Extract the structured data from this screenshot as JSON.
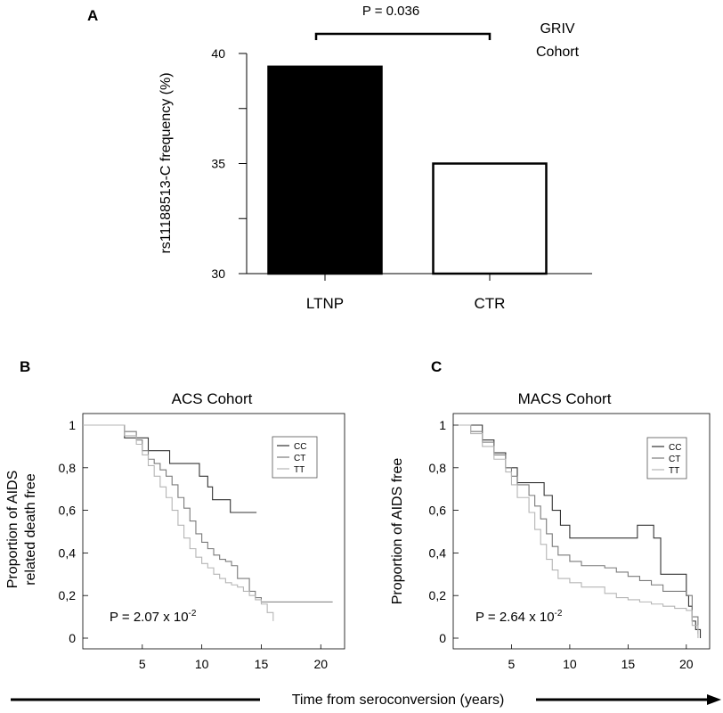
{
  "panels": {
    "a": "A",
    "b": "B",
    "c": "C"
  },
  "panel_a": {
    "significance": "P = 0.036",
    "cohort_line1": "GRIV",
    "cohort_line2": "Cohort"
  },
  "panel_b": {
    "title": "ACS Cohort",
    "ylabel_line1": "Proportion of AIDS",
    "ylabel_line2": "related death free",
    "pvalue": "P = 2.07 x 10",
    "pvalue_exp": "-2"
  },
  "panel_c": {
    "title": "MACS Cohort",
    "ylabel": "Proportion of AIDS  free",
    "pvalue": "P = 2.64 x 10",
    "pvalue_exp": "-2"
  },
  "shared_xlabel": "Time from seroconversion (years)",
  "colors": {
    "bar_ltnp": "#000000",
    "bar_ctr": "#ffffff",
    "cc": "#333333",
    "ct": "#7a7a7a",
    "tt": "#b5b5b5"
  },
  "chart_data": [
    {
      "type": "bar",
      "categories": [
        "LTNP",
        "CTR"
      ],
      "values": [
        39.4,
        35.0
      ],
      "xlabel": "",
      "ylabel": "rs11188513-C frequency (%)",
      "ylim": [
        30,
        40
      ],
      "yticks": [
        "30",
        "35",
        "40"
      ],
      "grid": false
    },
    {
      "type": "line",
      "xlabel": "",
      "ylabel": "Proportion of AIDS related death free",
      "xlim": [
        0,
        22
      ],
      "ylim": [
        0,
        1
      ],
      "xticks": [
        "5",
        "10",
        "15",
        "20"
      ],
      "yticks": [
        "0",
        "0,2",
        "0,4",
        "0,6",
        "0,8",
        "1"
      ],
      "legend": "top-right",
      "series": [
        {
          "name": "CC",
          "x": [
            0,
            3,
            3.5,
            5.5,
            6.2,
            6.8,
            7.3,
            9.0,
            9.8,
            10.5,
            10.9,
            11.2,
            12.0,
            12.4,
            14.6
          ],
          "y": [
            1,
            1,
            0.94,
            0.88,
            0.88,
            0.88,
            0.82,
            0.82,
            0.76,
            0.71,
            0.65,
            0.65,
            0.65,
            0.59,
            0.59
          ]
        },
        {
          "name": "CT",
          "x": [
            0,
            2.5,
            3.5,
            4.5,
            5,
            5.5,
            6,
            6.5,
            7,
            7.5,
            8,
            8.5,
            9,
            9.5,
            10,
            10.5,
            11,
            11.5,
            12,
            12.5,
            13,
            14,
            14.5,
            15,
            16,
            18,
            21
          ],
          "y": [
            1,
            1,
            0.97,
            0.93,
            0.88,
            0.84,
            0.82,
            0.79,
            0.76,
            0.72,
            0.66,
            0.61,
            0.55,
            0.49,
            0.45,
            0.42,
            0.39,
            0.37,
            0.36,
            0.34,
            0.28,
            0.22,
            0.19,
            0.17,
            0.17,
            0.17,
            0.17
          ]
        },
        {
          "name": "TT",
          "x": [
            0,
            2.5,
            3.5,
            4.5,
            5,
            5.5,
            6,
            6.5,
            7,
            7.5,
            8,
            8.5,
            9,
            9.5,
            10,
            10.5,
            11,
            11.5,
            12,
            12.5,
            13,
            13.5,
            14,
            14.5,
            15,
            15.5,
            16
          ],
          "y": [
            1,
            1,
            0.95,
            0.91,
            0.86,
            0.81,
            0.76,
            0.71,
            0.66,
            0.6,
            0.53,
            0.47,
            0.42,
            0.38,
            0.35,
            0.33,
            0.3,
            0.28,
            0.26,
            0.25,
            0.24,
            0.22,
            0.2,
            0.18,
            0.16,
            0.12,
            0.08
          ]
        }
      ]
    },
    {
      "type": "line",
      "xlabel": "",
      "ylabel": "Proportion of AIDS  free",
      "xlim": [
        0,
        22
      ],
      "ylim": [
        0,
        1
      ],
      "xticks": [
        "5",
        "10",
        "15",
        "20"
      ],
      "yticks": [
        "0",
        "0,2",
        "0,4",
        "0,6",
        "0,8",
        "1"
      ],
      "legend": "top-right",
      "series": [
        {
          "name": "CC",
          "x": [
            0.5,
            1.5,
            2.5,
            3.5,
            4.5,
            5.5,
            7.2,
            7.8,
            8.5,
            9.2,
            10,
            12,
            14,
            15.8,
            17.2,
            17.8,
            20,
            20.2,
            20.5,
            20.8,
            21.2
          ],
          "y": [
            1,
            1,
            0.93,
            0.87,
            0.8,
            0.73,
            0.73,
            0.67,
            0.6,
            0.53,
            0.47,
            0.47,
            0.47,
            0.53,
            0.47,
            0.3,
            0.2,
            0.15,
            0.08,
            0.04,
            0.0
          ]
        },
        {
          "name": "CT",
          "x": [
            0.5,
            1.5,
            2.5,
            3.5,
            4.5,
            5,
            5.5,
            6.5,
            7,
            7.5,
            8,
            8.5,
            9,
            10,
            11,
            13,
            14,
            15,
            16,
            17,
            18,
            19,
            20,
            20.5,
            21
          ],
          "y": [
            1,
            0.97,
            0.92,
            0.86,
            0.8,
            0.76,
            0.72,
            0.67,
            0.62,
            0.56,
            0.49,
            0.43,
            0.39,
            0.36,
            0.34,
            0.33,
            0.31,
            0.29,
            0.27,
            0.25,
            0.22,
            0.22,
            0.2,
            0.1,
            0.02
          ]
        },
        {
          "name": "TT",
          "x": [
            0.5,
            1.5,
            2.5,
            3.5,
            4.5,
            5,
            5.5,
            6.5,
            7,
            7.5,
            8,
            8.5,
            9,
            10,
            11,
            13,
            14,
            15,
            16,
            17,
            18,
            19,
            20,
            20.5,
            21
          ],
          "y": [
            1,
            0.96,
            0.9,
            0.84,
            0.78,
            0.72,
            0.66,
            0.59,
            0.51,
            0.44,
            0.37,
            0.32,
            0.28,
            0.26,
            0.24,
            0.21,
            0.19,
            0.18,
            0.17,
            0.16,
            0.15,
            0.14,
            0.13,
            0.06,
            0.0
          ]
        }
      ]
    }
  ]
}
